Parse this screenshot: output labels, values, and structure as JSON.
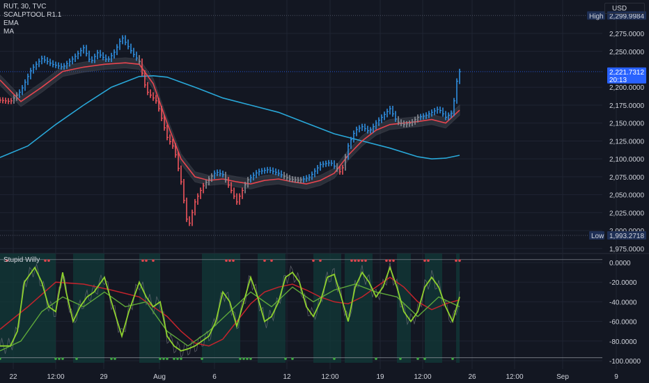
{
  "header": {
    "symbol_line": "RUT, 30, TVC",
    "indicators": [
      "SCALPTOOL R1.1",
      "EMA",
      "MA"
    ],
    "currency": "USD"
  },
  "sub_indicator": {
    "name": "Stupid Willy"
  },
  "colors": {
    "background": "#131722",
    "grid": "#1f2433",
    "up_bar": "#2f8fe0",
    "down_bar": "#f0545c",
    "neutral_bar": "#8a8d96",
    "ema_line": "#e8454f",
    "band": "#5a5d66",
    "ma_line": "#29a8d9",
    "osc_fast": "#8fd22e",
    "osc_slow": "#5fa83a",
    "osc_signal": "#c4242c",
    "osc_raw": "#6b6e77",
    "zone_fill": "#123a38",
    "price_tag": "#2962ff",
    "label_bg": "#1e2f55"
  },
  "price_axis": {
    "ticks": [
      "2,275.0000",
      "2,250.0000",
      "2,200.0000",
      "2,175.0000",
      "2,150.0000",
      "2,125.0000",
      "2,100.0000",
      "2,075.0000",
      "2,050.0000",
      "2,025.0000",
      "2,000.0000",
      "1,975.0000"
    ],
    "high_label": "High",
    "high_value": "2,299.9984",
    "low_label": "Low",
    "low_value": "1,993.2718",
    "last_value": "2,221.7312",
    "countdown": "20:13"
  },
  "osc_axis": {
    "ticks": [
      "0.0000",
      "-20.0000",
      "-40.0000",
      "-60.0000",
      "-80.0000",
      "-100.0000"
    ]
  },
  "time_axis": {
    "labels": [
      "22",
      "12:00",
      "29",
      "Aug",
      "6",
      "12",
      "12:00",
      "19",
      "12:00",
      "26",
      "12:00",
      "Sep",
      "9"
    ]
  },
  "chart_data": [
    {
      "type": "line",
      "title": "RUT, 30, TVC",
      "x_range": [
        "Jul 22",
        "Sep 9"
      ],
      "ylim": [
        1970,
        2310
      ],
      "high": 2299.9984,
      "low": 1993.2718,
      "last": 2221.7312,
      "series": [
        {
          "name": "RUT",
          "t": [
            0,
            3,
            6,
            9,
            12,
            15,
            18,
            21,
            24,
            26,
            28,
            30,
            31,
            33,
            35,
            38,
            40,
            42,
            45,
            48,
            50,
            52,
            54,
            56,
            58,
            60,
            62,
            64,
            66,
            68,
            71,
            74,
            77,
            80,
            83,
            86,
            89,
            92,
            95,
            98,
            100,
            102,
            104,
            106,
            108,
            110,
            112,
            114,
            116,
            118,
            120,
            122,
            124,
            126,
            128,
            130,
            131,
            132
          ],
          "values": [
            2182,
            2180,
            2195,
            2225,
            2240,
            2232,
            2228,
            2240,
            2255,
            2235,
            2248,
            2240,
            2238,
            2250,
            2270,
            2248,
            2236,
            2195,
            2180,
            2130,
            2115,
            2068,
            2003,
            2040,
            2060,
            2072,
            2082,
            2078,
            2060,
            2040,
            2070,
            2082,
            2085,
            2080,
            2072,
            2070,
            2075,
            2092,
            2095,
            2080,
            2118,
            2140,
            2145,
            2138,
            2150,
            2160,
            2170,
            2152,
            2148,
            2150,
            2158,
            2160,
            2165,
            2170,
            2158,
            2165,
            2205,
            2221.7
          ]
        },
        {
          "name": "EMA",
          "t": [
            0,
            6,
            12,
            18,
            24,
            30,
            36,
            40,
            44,
            48,
            52,
            56,
            60,
            64,
            68,
            72,
            76,
            80,
            84,
            88,
            92,
            96,
            100,
            104,
            108,
            112,
            116,
            120,
            124,
            128,
            132
          ],
          "values": [
            2210,
            2180,
            2200,
            2222,
            2228,
            2232,
            2234,
            2232,
            2205,
            2150,
            2100,
            2075,
            2070,
            2072,
            2068,
            2065,
            2070,
            2072,
            2068,
            2065,
            2070,
            2080,
            2105,
            2125,
            2140,
            2148,
            2150,
            2152,
            2155,
            2150,
            2168
          ]
        },
        {
          "name": "MA",
          "t": [
            0,
            8,
            16,
            24,
            32,
            40,
            44,
            48,
            56,
            64,
            72,
            80,
            88,
            96,
            104,
            112,
            120,
            124,
            128,
            132
          ],
          "values": [
            2102,
            2118,
            2148,
            2175,
            2200,
            2215,
            2216,
            2214,
            2200,
            2185,
            2175,
            2165,
            2150,
            2135,
            2125,
            2115,
            2103,
            2100,
            2101,
            2105
          ]
        }
      ]
    },
    {
      "type": "line",
      "title": "Stupid Willy",
      "ylim": [
        -105,
        5
      ],
      "series": [
        {
          "t": [
            0,
            3,
            5,
            7,
            10,
            12,
            14,
            16,
            18,
            19,
            21,
            23,
            25,
            27,
            30,
            32,
            35,
            37,
            40,
            42,
            44,
            46,
            48,
            50,
            52,
            54,
            56,
            58,
            60,
            62,
            64,
            66,
            68,
            70,
            72,
            74,
            76,
            78,
            80,
            82,
            84,
            86,
            88,
            90,
            92,
            94,
            96,
            98,
            100,
            102,
            104,
            106,
            108,
            110,
            112,
            114,
            116,
            118,
            120,
            122,
            124,
            126,
            128,
            130,
            132
          ],
          "values": [
            -85,
            -85,
            -70,
            -20,
            -5,
            -20,
            -45,
            -50,
            -10,
            -30,
            -60,
            -45,
            -35,
            -30,
            -15,
            -40,
            -75,
            -50,
            -20,
            -35,
            -45,
            -40,
            -75,
            -85,
            -90,
            -88,
            -85,
            -80,
            -75,
            -60,
            -30,
            -40,
            -65,
            -40,
            -15,
            -35,
            -60,
            -55,
            -40,
            -15,
            -10,
            -20,
            -45,
            -55,
            -40,
            -15,
            -12,
            -35,
            -60,
            -25,
            -10,
            -20,
            -35,
            -25,
            -5,
            -25,
            -50,
            -60,
            -50,
            -25,
            -15,
            -25,
            -45,
            -60,
            -35
          ]
        },
        {
          "t": [
            0,
            6,
            12,
            18,
            24,
            30,
            36,
            42,
            48,
            54,
            60,
            66,
            72,
            78,
            84,
            90,
            96,
            102,
            108,
            114,
            120,
            126,
            132
          ],
          "values": [
            -90,
            -80,
            -50,
            -35,
            -45,
            -30,
            -45,
            -40,
            -70,
            -85,
            -70,
            -50,
            -30,
            -45,
            -25,
            -40,
            -28,
            -22,
            -30,
            -35,
            -55,
            -35,
            -45
          ]
        },
        {
          "t": [
            0,
            8,
            16,
            24,
            32,
            40,
            44,
            48,
            52,
            56,
            60,
            64,
            68,
            72,
            76,
            80,
            84,
            88,
            92,
            96,
            100,
            104,
            108,
            112,
            116,
            120,
            124,
            128,
            132
          ],
          "values": [
            -68,
            -45,
            -20,
            -22,
            -28,
            -35,
            -45,
            -55,
            -70,
            -82,
            -85,
            -78,
            -60,
            -42,
            -30,
            -25,
            -22,
            -28,
            -35,
            -40,
            -42,
            -35,
            -25,
            -15,
            -25,
            -40,
            -48,
            -42,
            -38
          ]
        }
      ]
    }
  ]
}
